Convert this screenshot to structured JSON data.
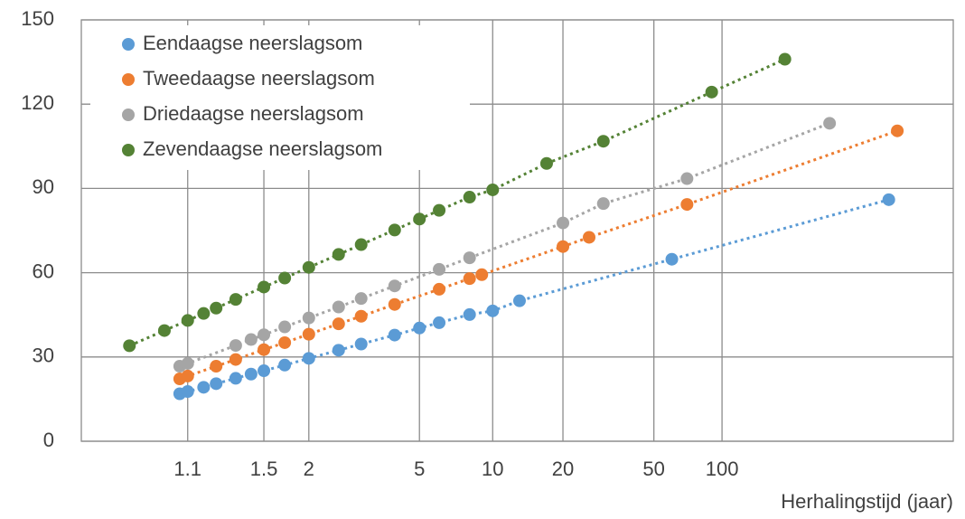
{
  "chart_data": {
    "type": "scatter",
    "x_label": "Herhalingstijd (jaar)",
    "xscale": "gumbel",
    "xlim": [
      1.0008,
      1064
    ],
    "xticks": [
      1.1,
      1.5,
      2,
      5,
      10,
      20,
      50,
      100
    ],
    "ylim": [
      0,
      150
    ],
    "yticks": [
      0,
      30,
      60,
      90,
      120,
      150
    ],
    "grid": true,
    "trendline": "dotted",
    "legend": "upper left",
    "series": [
      {
        "name": "Eendaagse neerslagsom",
        "color": "#5b9bd5",
        "x": [
          1.08,
          1.1,
          1.15,
          1.2,
          1.3,
          1.4,
          1.5,
          1.7,
          2,
          2.5,
          3,
          4,
          5,
          6,
          8,
          10,
          13,
          60,
          550
        ],
        "values": [
          16.9,
          17.7,
          19.2,
          20.5,
          22.4,
          23.9,
          25.1,
          27.1,
          29.5,
          32.4,
          34.6,
          37.8,
          40.3,
          42.2,
          45.1,
          46.4,
          50.0,
          64.8,
          86
        ]
      },
      {
        "name": "Tweedaagse neerslagsom",
        "color": "#ed7d31",
        "x": [
          1.08,
          1.1,
          1.2,
          1.3,
          1.5,
          1.7,
          2,
          2.5,
          3,
          4,
          6,
          8,
          9,
          20,
          26,
          70,
          600
        ],
        "values": [
          22.2,
          23.2,
          26.7,
          29.1,
          32.6,
          35.1,
          38.1,
          41.8,
          44.5,
          48.7,
          54.1,
          57.9,
          59.3,
          69.3,
          72.6,
          84.3,
          110.5
        ]
      },
      {
        "name": "Driedaagse neerslagsom",
        "color": "#a5a5a5",
        "x": [
          1.08,
          1.1,
          1.3,
          1.4,
          1.5,
          1.7,
          2,
          2.5,
          3,
          4,
          6,
          8,
          20,
          30,
          70,
          300
        ],
        "values": [
          26.7,
          27.7,
          34.1,
          36.2,
          37.9,
          40.7,
          43.9,
          47.8,
          50.8,
          55.3,
          61.2,
          65.3,
          77.7,
          84.6,
          93.5,
          113.2
        ]
      },
      {
        "name": "Zevendaagse neerslagsom",
        "color": "#548235",
        "x": [
          1.013,
          1.05,
          1.1,
          1.15,
          1.2,
          1.3,
          1.5,
          1.7,
          2,
          2.5,
          3,
          4,
          5,
          6,
          8,
          10,
          17,
          30,
          90,
          190
        ],
        "values": [
          34,
          39.4,
          43.0,
          45.5,
          47.4,
          50.5,
          54.9,
          58.1,
          61.9,
          66.5,
          70.0,
          75.2,
          79.1,
          82.2,
          86.9,
          89.5,
          98.9,
          106.8,
          124.3,
          136
        ]
      }
    ]
  }
}
